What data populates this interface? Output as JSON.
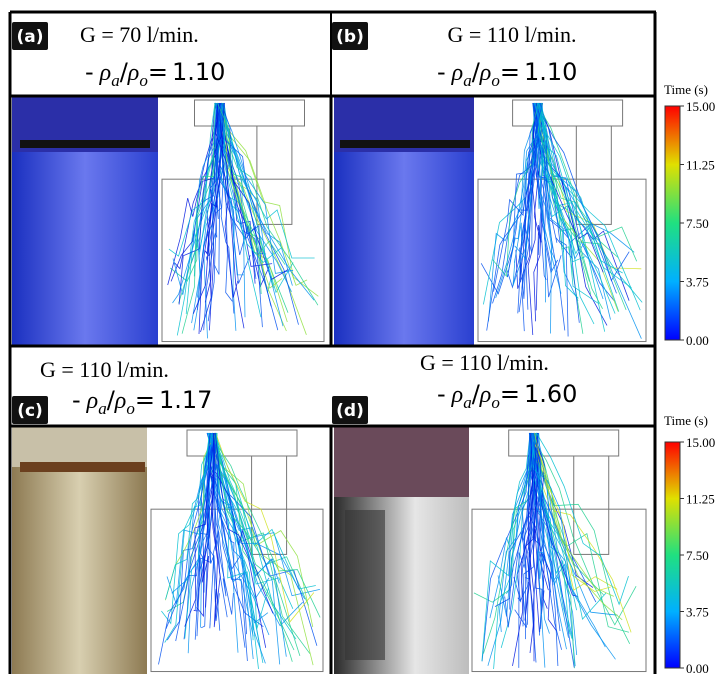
{
  "ratio_symbol": {
    "prefix": "-",
    "numerator": "ρ",
    "numerator_sub": "a",
    "separator": "/",
    "denominator": "ρ",
    "denominator_sub": "o",
    "equals": "="
  },
  "panels": [
    {
      "label": "(a)",
      "flow": "G = 70 l/min.",
      "ratio_value": "1.10"
    },
    {
      "label": "(b)",
      "flow": "G = 110 l/min.",
      "ratio_value": "1.10"
    },
    {
      "label": "(c)",
      "flow": "G = 110 l/min.",
      "ratio_value": "1.17"
    },
    {
      "label": "(d)",
      "flow": "G = 110 l/min.",
      "ratio_value": "1.60"
    }
  ],
  "colorbars": [
    {
      "title": "Time (s)",
      "ticks": [
        "15.00",
        "11.25",
        "7.50",
        "3.75",
        "0.00"
      ]
    },
    {
      "title": "Time (s)",
      "ticks": [
        "15.00",
        "11.25",
        "7.50",
        "3.75",
        "0.00"
      ]
    }
  ]
}
